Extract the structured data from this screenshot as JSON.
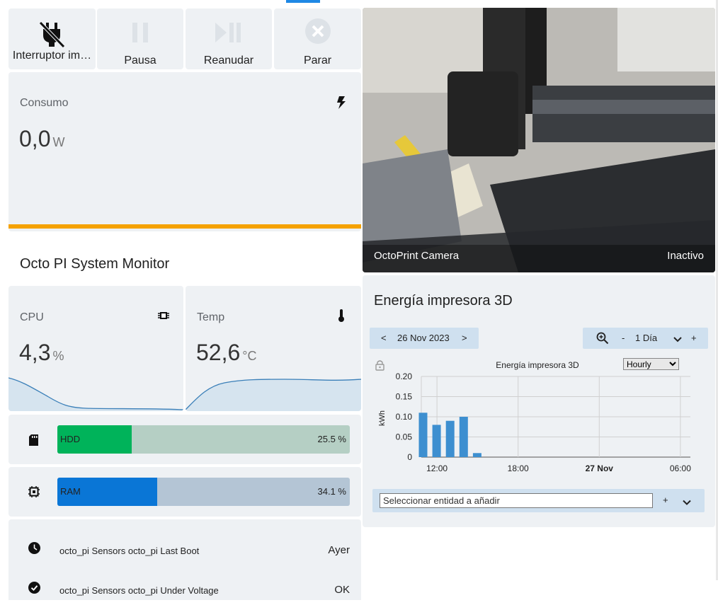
{
  "tabs": {
    "active_indicator": "#1e88e5"
  },
  "top_buttons": [
    {
      "label": "Interruptor im…",
      "icon": "power-plug-off-icon"
    },
    {
      "label": "Pausa",
      "icon": "pause-icon"
    },
    {
      "label": "Reanudar",
      "icon": "play-pause-icon"
    },
    {
      "label": "Parar",
      "icon": "stop-circle-icon"
    }
  ],
  "consumo": {
    "title": "Consumo",
    "value": "0,0",
    "unit": "W",
    "icon": "flash-icon",
    "accent": "#f5a200"
  },
  "system_monitor": {
    "title": "Octo PI System Monitor",
    "cpu": {
      "title": "CPU",
      "value": "4,3",
      "unit": "%",
      "icon": "cpu-icon"
    },
    "temp": {
      "title": "Temp",
      "value": "52,6",
      "unit": "°C",
      "icon": "thermometer-icon"
    },
    "bars": [
      {
        "label": "HDD",
        "percent_text": "25.5 %",
        "percent": 25.5,
        "fill": "#00b35a",
        "bg": "#b5cfc4",
        "icon": "sd-card-icon"
      },
      {
        "label": "RAM",
        "percent_text": "34.1 %",
        "percent": 34.1,
        "fill": "#0a76d6",
        "bg": "#b4c5d5",
        "icon": "chip-icon"
      }
    ],
    "entities": [
      {
        "name": "octo_pi Sensors octo_pi Last Boot",
        "state": "Ayer",
        "icon": "clock-icon"
      },
      {
        "name": "octo_pi Sensors octo_pi Under Voltage",
        "state": "OK",
        "icon": "check-circle-icon"
      }
    ]
  },
  "camera": {
    "title": "OctoPrint Camera",
    "status": "Inactivo"
  },
  "energy": {
    "title": "Energía impresora 3D",
    "date": "26 Nov 2023",
    "prev": "<",
    "next": ">",
    "zoom_minus": "-",
    "period": "1 Día",
    "zoom_plus": "+",
    "period_options": [
      "1 Día"
    ],
    "hourly_select": "Hourly",
    "add_placeholder": "Seleccionar entidad a añadir",
    "add_button": "+",
    "expand_button": "⌄"
  },
  "chart_data": {
    "type": "bar",
    "title": "Energía impresora 3D",
    "ylabel": "kWh",
    "xlabel": "",
    "ylim": [
      0,
      0.2
    ],
    "y_ticks": [
      "0.20",
      "0.15",
      "0.10",
      "0.05",
      "0"
    ],
    "x_tick_labels": [
      "12:00",
      "18:00",
      "27 Nov",
      "06:00"
    ],
    "categories": [
      "11:00",
      "12:00",
      "13:00",
      "14:00",
      "15:00"
    ],
    "values": [
      0.11,
      0.08,
      0.09,
      0.1,
      0.01
    ],
    "color": "#3d8fd0",
    "grid": true
  }
}
